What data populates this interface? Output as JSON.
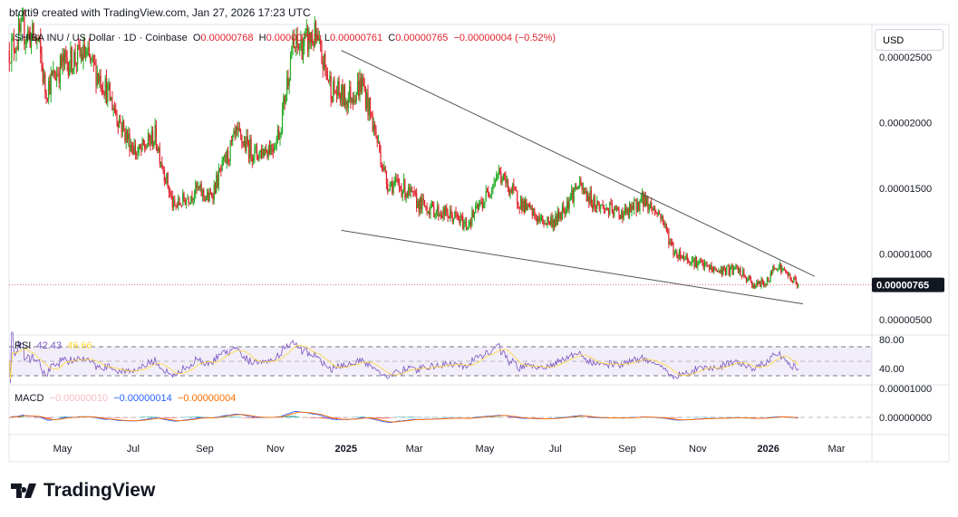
{
  "credit": "btotti9 created with TradingView.com, Jan 27, 2026 17:23 UTC",
  "legend": {
    "symbol": "SHIBA INU / US Dollar · 1D · Coinbase",
    "o_label": "O",
    "o": "0.00000768",
    "h_label": "H",
    "h": "0.00000783",
    "l_label": "L",
    "l": "0.00000761",
    "c_label": "C",
    "c": "0.00000765",
    "change": "−0.00000004 (−0.52%)"
  },
  "currency": "USD",
  "rsi": {
    "label": "RSI",
    "value": "42.43",
    "ma": "46.66",
    "ticks": [
      "80.00",
      "40.00"
    ],
    "color": "#7e57c2",
    "ma_color": "#fdd835"
  },
  "macd": {
    "label": "MACD",
    "hist": "−0.00000010",
    "macd": "−0.00000014",
    "signal": "−0.00000004",
    "ticks": [
      "0.00001000",
      "0.00000000"
    ],
    "hist_color": "#ffcdd2",
    "macd_color": "#2962ff",
    "signal_color": "#ff6d00"
  },
  "logo": "TradingView",
  "chart_data": {
    "type": "candlestick",
    "title": "SHIBA INU / US Dollar · 1D · Coinbase",
    "last_price": "0.00000765",
    "y_ticks": [
      "0.00002500",
      "0.00002000",
      "0.00001500",
      "0.00001000",
      "0.00000500"
    ],
    "ylim": [
      3.5e-06,
      2.84e-05
    ],
    "x_ticks": [
      {
        "d": "2024-05-01",
        "t": "May"
      },
      {
        "d": "2024-07-01",
        "t": "Jul"
      },
      {
        "d": "2024-09-01",
        "t": "Sep"
      },
      {
        "d": "2024-11-01",
        "t": "Nov"
      },
      {
        "d": "2025-01-01",
        "t": "2025",
        "bold": true
      },
      {
        "d": "2025-03-01",
        "t": "Mar"
      },
      {
        "d": "2025-05-01",
        "t": "May"
      },
      {
        "d": "2025-07-01",
        "t": "Jul"
      },
      {
        "d": "2025-09-01",
        "t": "Sep"
      },
      {
        "d": "2025-11-01",
        "t": "Nov"
      },
      {
        "d": "2026-01-01",
        "t": "2026",
        "bold": true
      },
      {
        "d": "2026-03-01",
        "t": "Mar"
      }
    ],
    "approx_close": [
      [
        "2024-03-16",
        2.55e-05
      ],
      [
        "2024-03-28",
        2.7e-05
      ],
      [
        "2024-04-10",
        2.62e-05
      ],
      [
        "2024-04-16",
        2.25e-05
      ],
      [
        "2024-05-01",
        2.45e-05
      ],
      [
        "2024-05-20",
        2.52e-05
      ],
      [
        "2024-06-05",
        2.31e-05
      ],
      [
        "2024-06-25",
        1.9e-05
      ],
      [
        "2024-07-05",
        1.76e-05
      ],
      [
        "2024-07-20",
        1.9e-05
      ],
      [
        "2024-08-05",
        1.35e-05
      ],
      [
        "2024-08-25",
        1.49e-05
      ],
      [
        "2024-09-05",
        1.42e-05
      ],
      [
        "2024-09-28",
        1.9e-05
      ],
      [
        "2024-10-15",
        1.76e-05
      ],
      [
        "2024-10-30",
        1.83e-05
      ],
      [
        "2024-11-05",
        1.95e-05
      ],
      [
        "2024-11-15",
        2.55e-05
      ],
      [
        "2024-12-05",
        2.65e-05
      ],
      [
        "2024-12-20",
        2.25e-05
      ],
      [
        "2025-01-01",
        2.18e-05
      ],
      [
        "2025-01-15",
        2.3e-05
      ],
      [
        "2025-01-27",
        1.9e-05
      ],
      [
        "2025-02-05",
        1.55e-05
      ],
      [
        "2025-02-20",
        1.5e-05
      ],
      [
        "2025-03-05",
        1.38e-05
      ],
      [
        "2025-03-20",
        1.33e-05
      ],
      [
        "2025-04-05",
        1.28e-05
      ],
      [
        "2025-04-15",
        1.22e-05
      ],
      [
        "2025-05-01",
        1.42e-05
      ],
      [
        "2025-05-12",
        1.62e-05
      ],
      [
        "2025-06-01",
        1.39e-05
      ],
      [
        "2025-06-18",
        1.25e-05
      ],
      [
        "2025-07-01",
        1.25e-05
      ],
      [
        "2025-07-20",
        1.52e-05
      ],
      [
        "2025-08-05",
        1.38e-05
      ],
      [
        "2025-08-20",
        1.32e-05
      ],
      [
        "2025-09-01",
        1.31e-05
      ],
      [
        "2025-09-15",
        1.42e-05
      ],
      [
        "2025-10-01",
        1.28e-05
      ],
      [
        "2025-10-11",
        1.02e-05
      ],
      [
        "2025-11-01",
        9.3e-06
      ],
      [
        "2025-11-18",
        8.7e-06
      ],
      [
        "2025-12-05",
        8.8e-06
      ],
      [
        "2025-12-20",
        7.6e-06
      ],
      [
        "2026-01-01",
        7.9e-06
      ],
      [
        "2026-01-07",
        9.3e-06
      ],
      [
        "2026-01-27",
        7.65e-06
      ]
    ],
    "trendlines": [
      {
        "from": [
          "2024-12-28",
          2.55e-05
        ],
        "to": [
          "2026-02-10",
          8.3e-06
        ]
      },
      {
        "from": [
          "2024-12-28",
          1.18e-05
        ],
        "to": [
          "2026-01-31",
          6.2e-06
        ]
      }
    ],
    "rsi_bands": [
      70,
      30
    ],
    "legend_position": "top-left"
  }
}
